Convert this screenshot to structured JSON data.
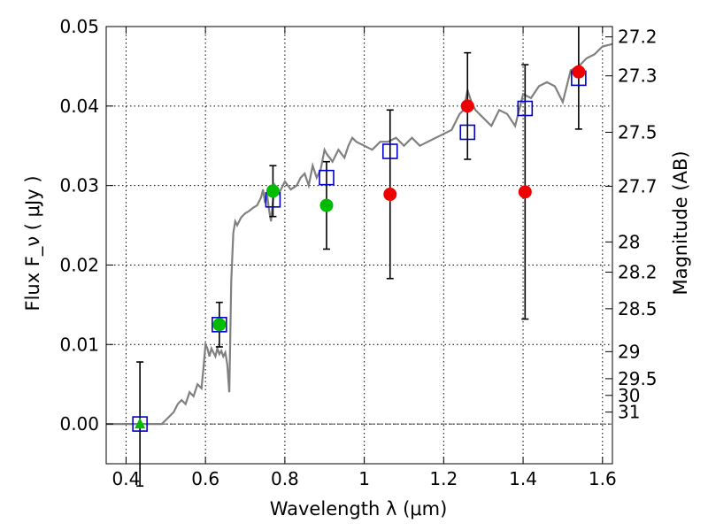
{
  "chart_data": {
    "type": "scatter",
    "title": "",
    "xlabel": "Wavelength  λ (μm)",
    "ylabel": "Flux  F_ν  ( μJy )",
    "y2label": "Magnitude (AB)",
    "xlim": [
      0.35,
      1.625
    ],
    "ylim": [
      -0.005,
      0.05
    ],
    "grid": true,
    "x_ticks": [
      {
        "value": 0.4,
        "label": "0.4"
      },
      {
        "value": 0.6,
        "label": "0.6"
      },
      {
        "value": 0.8,
        "label": "0.8"
      },
      {
        "value": 1.0,
        "label": "1"
      },
      {
        "value": 1.2,
        "label": "1.2"
      },
      {
        "value": 1.4,
        "label": "1.4"
      },
      {
        "value": 1.6,
        "label": "1.6"
      }
    ],
    "y_ticks": [
      {
        "value": 0.0,
        "label": "0.00"
      },
      {
        "value": 0.01,
        "label": "0.01"
      },
      {
        "value": 0.02,
        "label": "0.02"
      },
      {
        "value": 0.03,
        "label": "0.03"
      },
      {
        "value": 0.04,
        "label": "0.04"
      },
      {
        "value": 0.05,
        "label": "0.05"
      }
    ],
    "y2_ticks": [
      {
        "flux": 0.0487,
        "label": "27.2"
      },
      {
        "flux": 0.0438,
        "label": "27.3"
      },
      {
        "flux": 0.0367,
        "label": "27.5"
      },
      {
        "flux": 0.0299,
        "label": "27.7"
      },
      {
        "flux": 0.0229,
        "label": "28"
      },
      {
        "flux": 0.0191,
        "label": "28.2"
      },
      {
        "flux": 0.0145,
        "label": "28.5"
      },
      {
        "flux": 0.0091,
        "label": "29"
      },
      {
        "flux": 0.0057,
        "label": "29.5"
      },
      {
        "flux": 0.0036,
        "label": "30"
      },
      {
        "flux": 0.0015,
        "label": "31"
      }
    ],
    "colors": {
      "model": "#808080",
      "squares": "#0000cc",
      "green": "#00bb00",
      "red": "#ee0000",
      "errorbar": "#000000"
    },
    "series": [
      {
        "kind": "line",
        "role": "model",
        "points": [
          [
            0.35,
            0.0
          ],
          [
            0.49,
            0.0
          ],
          [
            0.5,
            0.0005
          ],
          [
            0.52,
            0.0015
          ],
          [
            0.53,
            0.0025
          ],
          [
            0.54,
            0.003
          ],
          [
            0.55,
            0.0025
          ],
          [
            0.56,
            0.004
          ],
          [
            0.57,
            0.0035
          ],
          [
            0.58,
            0.005
          ],
          [
            0.59,
            0.0045
          ],
          [
            0.595,
            0.007
          ],
          [
            0.6,
            0.01
          ],
          [
            0.605,
            0.0095
          ],
          [
            0.61,
            0.0085
          ],
          [
            0.615,
            0.0095
          ],
          [
            0.62,
            0.009
          ],
          [
            0.625,
            0.0085
          ],
          [
            0.63,
            0.0095
          ],
          [
            0.635,
            0.0088
          ],
          [
            0.64,
            0.0092
          ],
          [
            0.645,
            0.0085
          ],
          [
            0.65,
            0.009
          ],
          [
            0.655,
            0.0075
          ],
          [
            0.66,
            0.004
          ],
          [
            0.665,
            0.018
          ],
          [
            0.67,
            0.024
          ],
          [
            0.675,
            0.0255
          ],
          [
            0.68,
            0.025
          ],
          [
            0.69,
            0.026
          ],
          [
            0.7,
            0.0265
          ],
          [
            0.71,
            0.0268
          ],
          [
            0.72,
            0.0272
          ],
          [
            0.73,
            0.0275
          ],
          [
            0.74,
            0.0285
          ],
          [
            0.745,
            0.0295
          ],
          [
            0.75,
            0.0278
          ],
          [
            0.755,
            0.029
          ],
          [
            0.76,
            0.027
          ],
          [
            0.765,
            0.0255
          ],
          [
            0.77,
            0.028
          ],
          [
            0.775,
            0.03
          ],
          [
            0.785,
            0.029
          ],
          [
            0.8,
            0.0305
          ],
          [
            0.815,
            0.0295
          ],
          [
            0.83,
            0.03
          ],
          [
            0.84,
            0.031
          ],
          [
            0.85,
            0.0315
          ],
          [
            0.86,
            0.03
          ],
          [
            0.87,
            0.0325
          ],
          [
            0.88,
            0.031
          ],
          [
            0.89,
            0.032
          ],
          [
            0.9,
            0.0345
          ],
          [
            0.905,
            0.034
          ],
          [
            0.92,
            0.033
          ],
          [
            0.935,
            0.0345
          ],
          [
            0.95,
            0.0335
          ],
          [
            0.96,
            0.035
          ],
          [
            0.97,
            0.036
          ],
          [
            0.98,
            0.0355
          ],
          [
            1.0,
            0.035
          ],
          [
            1.02,
            0.0345
          ],
          [
            1.04,
            0.0355
          ],
          [
            1.06,
            0.0355
          ],
          [
            1.08,
            0.036
          ],
          [
            1.1,
            0.035
          ],
          [
            1.12,
            0.036
          ],
          [
            1.14,
            0.035
          ],
          [
            1.16,
            0.0355
          ],
          [
            1.18,
            0.036
          ],
          [
            1.2,
            0.0365
          ],
          [
            1.22,
            0.037
          ],
          [
            1.24,
            0.039
          ],
          [
            1.25,
            0.0395
          ],
          [
            1.26,
            0.042
          ],
          [
            1.27,
            0.0405
          ],
          [
            1.28,
            0.0395
          ],
          [
            1.3,
            0.0385
          ],
          [
            1.32,
            0.0375
          ],
          [
            1.34,
            0.0395
          ],
          [
            1.36,
            0.039
          ],
          [
            1.38,
            0.0375
          ],
          [
            1.4,
            0.0415
          ],
          [
            1.42,
            0.041
          ],
          [
            1.44,
            0.0425
          ],
          [
            1.46,
            0.043
          ],
          [
            1.48,
            0.0425
          ],
          [
            1.5,
            0.0405
          ],
          [
            1.52,
            0.0445
          ],
          [
            1.54,
            0.045
          ],
          [
            1.56,
            0.046
          ],
          [
            1.58,
            0.0465
          ],
          [
            1.6,
            0.0475
          ],
          [
            1.625,
            0.0478
          ]
        ]
      },
      {
        "kind": "marker",
        "marker": "square",
        "role": "model-band",
        "points": [
          [
            0.435,
            0.0
          ],
          [
            0.635,
            0.0125
          ],
          [
            0.77,
            0.0282
          ],
          [
            0.905,
            0.031
          ],
          [
            1.065,
            0.0343
          ],
          [
            1.26,
            0.0367
          ],
          [
            1.405,
            0.0397
          ],
          [
            1.54,
            0.0435
          ]
        ]
      },
      {
        "kind": "marker",
        "marker": "circle",
        "role": "green",
        "points": [
          [
            0.635,
            0.0125,
            0.0028
          ],
          [
            0.77,
            0.0293,
            0.0032
          ],
          [
            0.905,
            0.0275,
            0.0055
          ]
        ]
      },
      {
        "kind": "marker",
        "marker": "triangle",
        "role": "green-upper",
        "points": [
          [
            0.435,
            0.0,
            0.0078
          ]
        ]
      },
      {
        "kind": "marker",
        "marker": "circle",
        "role": "red",
        "points": [
          [
            1.065,
            0.0289,
            0.0106
          ],
          [
            1.26,
            0.04,
            0.0067
          ],
          [
            1.405,
            0.0292,
            0.016
          ],
          [
            1.54,
            0.0443,
            0.0072
          ]
        ]
      }
    ]
  }
}
